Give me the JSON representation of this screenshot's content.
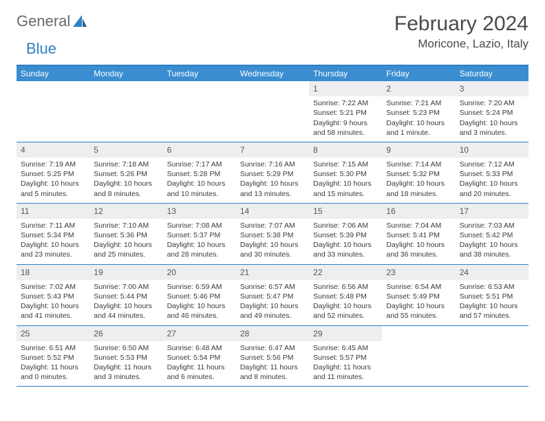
{
  "brand": {
    "part1": "General",
    "part2": "Blue"
  },
  "title": "February 2024",
  "location": "Moricone, Lazio, Italy",
  "colors": {
    "header_bg": "#3a8dd0",
    "border": "#2f7fc4",
    "daynum_bg": "#eceef0",
    "text": "#3a3a3a",
    "title": "#4a4a4a"
  },
  "weekdays": [
    "Sunday",
    "Monday",
    "Tuesday",
    "Wednesday",
    "Thursday",
    "Friday",
    "Saturday"
  ],
  "weeks": [
    [
      {
        "n": "",
        "sr": "",
        "ss": "",
        "dl": ""
      },
      {
        "n": "",
        "sr": "",
        "ss": "",
        "dl": ""
      },
      {
        "n": "",
        "sr": "",
        "ss": "",
        "dl": ""
      },
      {
        "n": "",
        "sr": "",
        "ss": "",
        "dl": ""
      },
      {
        "n": "1",
        "sr": "Sunrise: 7:22 AM",
        "ss": "Sunset: 5:21 PM",
        "dl": "Daylight: 9 hours and 58 minutes."
      },
      {
        "n": "2",
        "sr": "Sunrise: 7:21 AM",
        "ss": "Sunset: 5:23 PM",
        "dl": "Daylight: 10 hours and 1 minute."
      },
      {
        "n": "3",
        "sr": "Sunrise: 7:20 AM",
        "ss": "Sunset: 5:24 PM",
        "dl": "Daylight: 10 hours and 3 minutes."
      }
    ],
    [
      {
        "n": "4",
        "sr": "Sunrise: 7:19 AM",
        "ss": "Sunset: 5:25 PM",
        "dl": "Daylight: 10 hours and 5 minutes."
      },
      {
        "n": "5",
        "sr": "Sunrise: 7:18 AM",
        "ss": "Sunset: 5:26 PM",
        "dl": "Daylight: 10 hours and 8 minutes."
      },
      {
        "n": "6",
        "sr": "Sunrise: 7:17 AM",
        "ss": "Sunset: 5:28 PM",
        "dl": "Daylight: 10 hours and 10 minutes."
      },
      {
        "n": "7",
        "sr": "Sunrise: 7:16 AM",
        "ss": "Sunset: 5:29 PM",
        "dl": "Daylight: 10 hours and 13 minutes."
      },
      {
        "n": "8",
        "sr": "Sunrise: 7:15 AM",
        "ss": "Sunset: 5:30 PM",
        "dl": "Daylight: 10 hours and 15 minutes."
      },
      {
        "n": "9",
        "sr": "Sunrise: 7:14 AM",
        "ss": "Sunset: 5:32 PM",
        "dl": "Daylight: 10 hours and 18 minutes."
      },
      {
        "n": "10",
        "sr": "Sunrise: 7:12 AM",
        "ss": "Sunset: 5:33 PM",
        "dl": "Daylight: 10 hours and 20 minutes."
      }
    ],
    [
      {
        "n": "11",
        "sr": "Sunrise: 7:11 AM",
        "ss": "Sunset: 5:34 PM",
        "dl": "Daylight: 10 hours and 23 minutes."
      },
      {
        "n": "12",
        "sr": "Sunrise: 7:10 AM",
        "ss": "Sunset: 5:36 PM",
        "dl": "Daylight: 10 hours and 25 minutes."
      },
      {
        "n": "13",
        "sr": "Sunrise: 7:08 AM",
        "ss": "Sunset: 5:37 PM",
        "dl": "Daylight: 10 hours and 28 minutes."
      },
      {
        "n": "14",
        "sr": "Sunrise: 7:07 AM",
        "ss": "Sunset: 5:38 PM",
        "dl": "Daylight: 10 hours and 30 minutes."
      },
      {
        "n": "15",
        "sr": "Sunrise: 7:06 AM",
        "ss": "Sunset: 5:39 PM",
        "dl": "Daylight: 10 hours and 33 minutes."
      },
      {
        "n": "16",
        "sr": "Sunrise: 7:04 AM",
        "ss": "Sunset: 5:41 PM",
        "dl": "Daylight: 10 hours and 36 minutes."
      },
      {
        "n": "17",
        "sr": "Sunrise: 7:03 AM",
        "ss": "Sunset: 5:42 PM",
        "dl": "Daylight: 10 hours and 38 minutes."
      }
    ],
    [
      {
        "n": "18",
        "sr": "Sunrise: 7:02 AM",
        "ss": "Sunset: 5:43 PM",
        "dl": "Daylight: 10 hours and 41 minutes."
      },
      {
        "n": "19",
        "sr": "Sunrise: 7:00 AM",
        "ss": "Sunset: 5:44 PM",
        "dl": "Daylight: 10 hours and 44 minutes."
      },
      {
        "n": "20",
        "sr": "Sunrise: 6:59 AM",
        "ss": "Sunset: 5:46 PM",
        "dl": "Daylight: 10 hours and 46 minutes."
      },
      {
        "n": "21",
        "sr": "Sunrise: 6:57 AM",
        "ss": "Sunset: 5:47 PM",
        "dl": "Daylight: 10 hours and 49 minutes."
      },
      {
        "n": "22",
        "sr": "Sunrise: 6:56 AM",
        "ss": "Sunset: 5:48 PM",
        "dl": "Daylight: 10 hours and 52 minutes."
      },
      {
        "n": "23",
        "sr": "Sunrise: 6:54 AM",
        "ss": "Sunset: 5:49 PM",
        "dl": "Daylight: 10 hours and 55 minutes."
      },
      {
        "n": "24",
        "sr": "Sunrise: 6:53 AM",
        "ss": "Sunset: 5:51 PM",
        "dl": "Daylight: 10 hours and 57 minutes."
      }
    ],
    [
      {
        "n": "25",
        "sr": "Sunrise: 6:51 AM",
        "ss": "Sunset: 5:52 PM",
        "dl": "Daylight: 11 hours and 0 minutes."
      },
      {
        "n": "26",
        "sr": "Sunrise: 6:50 AM",
        "ss": "Sunset: 5:53 PM",
        "dl": "Daylight: 11 hours and 3 minutes."
      },
      {
        "n": "27",
        "sr": "Sunrise: 6:48 AM",
        "ss": "Sunset: 5:54 PM",
        "dl": "Daylight: 11 hours and 6 minutes."
      },
      {
        "n": "28",
        "sr": "Sunrise: 6:47 AM",
        "ss": "Sunset: 5:56 PM",
        "dl": "Daylight: 11 hours and 8 minutes."
      },
      {
        "n": "29",
        "sr": "Sunrise: 6:45 AM",
        "ss": "Sunset: 5:57 PM",
        "dl": "Daylight: 11 hours and 11 minutes."
      },
      {
        "n": "",
        "sr": "",
        "ss": "",
        "dl": ""
      },
      {
        "n": "",
        "sr": "",
        "ss": "",
        "dl": ""
      }
    ]
  ]
}
